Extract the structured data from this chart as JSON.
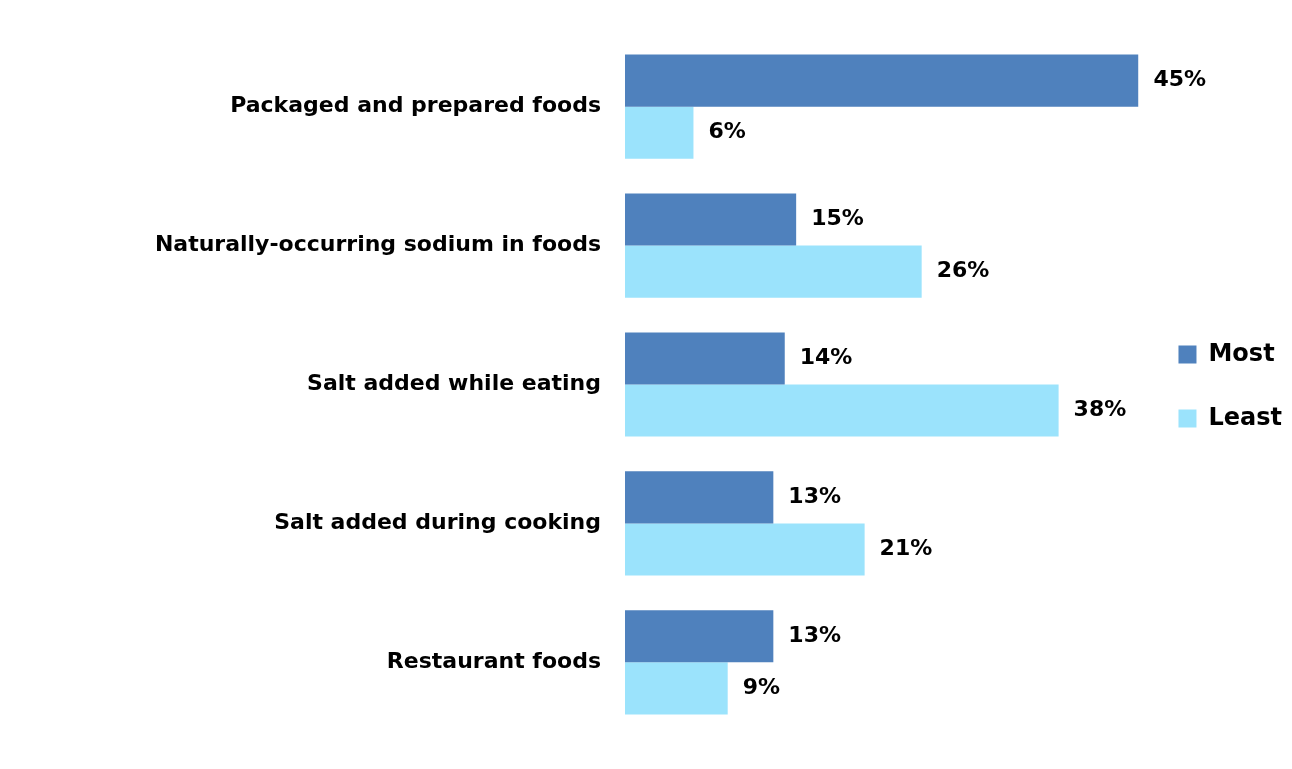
{
  "chart_data": {
    "type": "bar",
    "orientation": "horizontal",
    "categories": [
      "Packaged and prepared foods",
      "Naturally-occurring sodium in foods",
      "Salt added while eating",
      "Salt added during cooking",
      "Restaurant foods"
    ],
    "series": [
      {
        "name": "Most",
        "color": "#4f81bd",
        "values": [
          45,
          15,
          14,
          13,
          13
        ],
        "value_labels": [
          "45%",
          "15%",
          "14%",
          "13%",
          "13%"
        ]
      },
      {
        "name": "Least",
        "color": "#9be3fc",
        "values": [
          6,
          26,
          38,
          21,
          9
        ],
        "value_labels": [
          "6%",
          "26%",
          "38%",
          "21%",
          "9%"
        ]
      }
    ],
    "legend": "right",
    "grid": false
  }
}
